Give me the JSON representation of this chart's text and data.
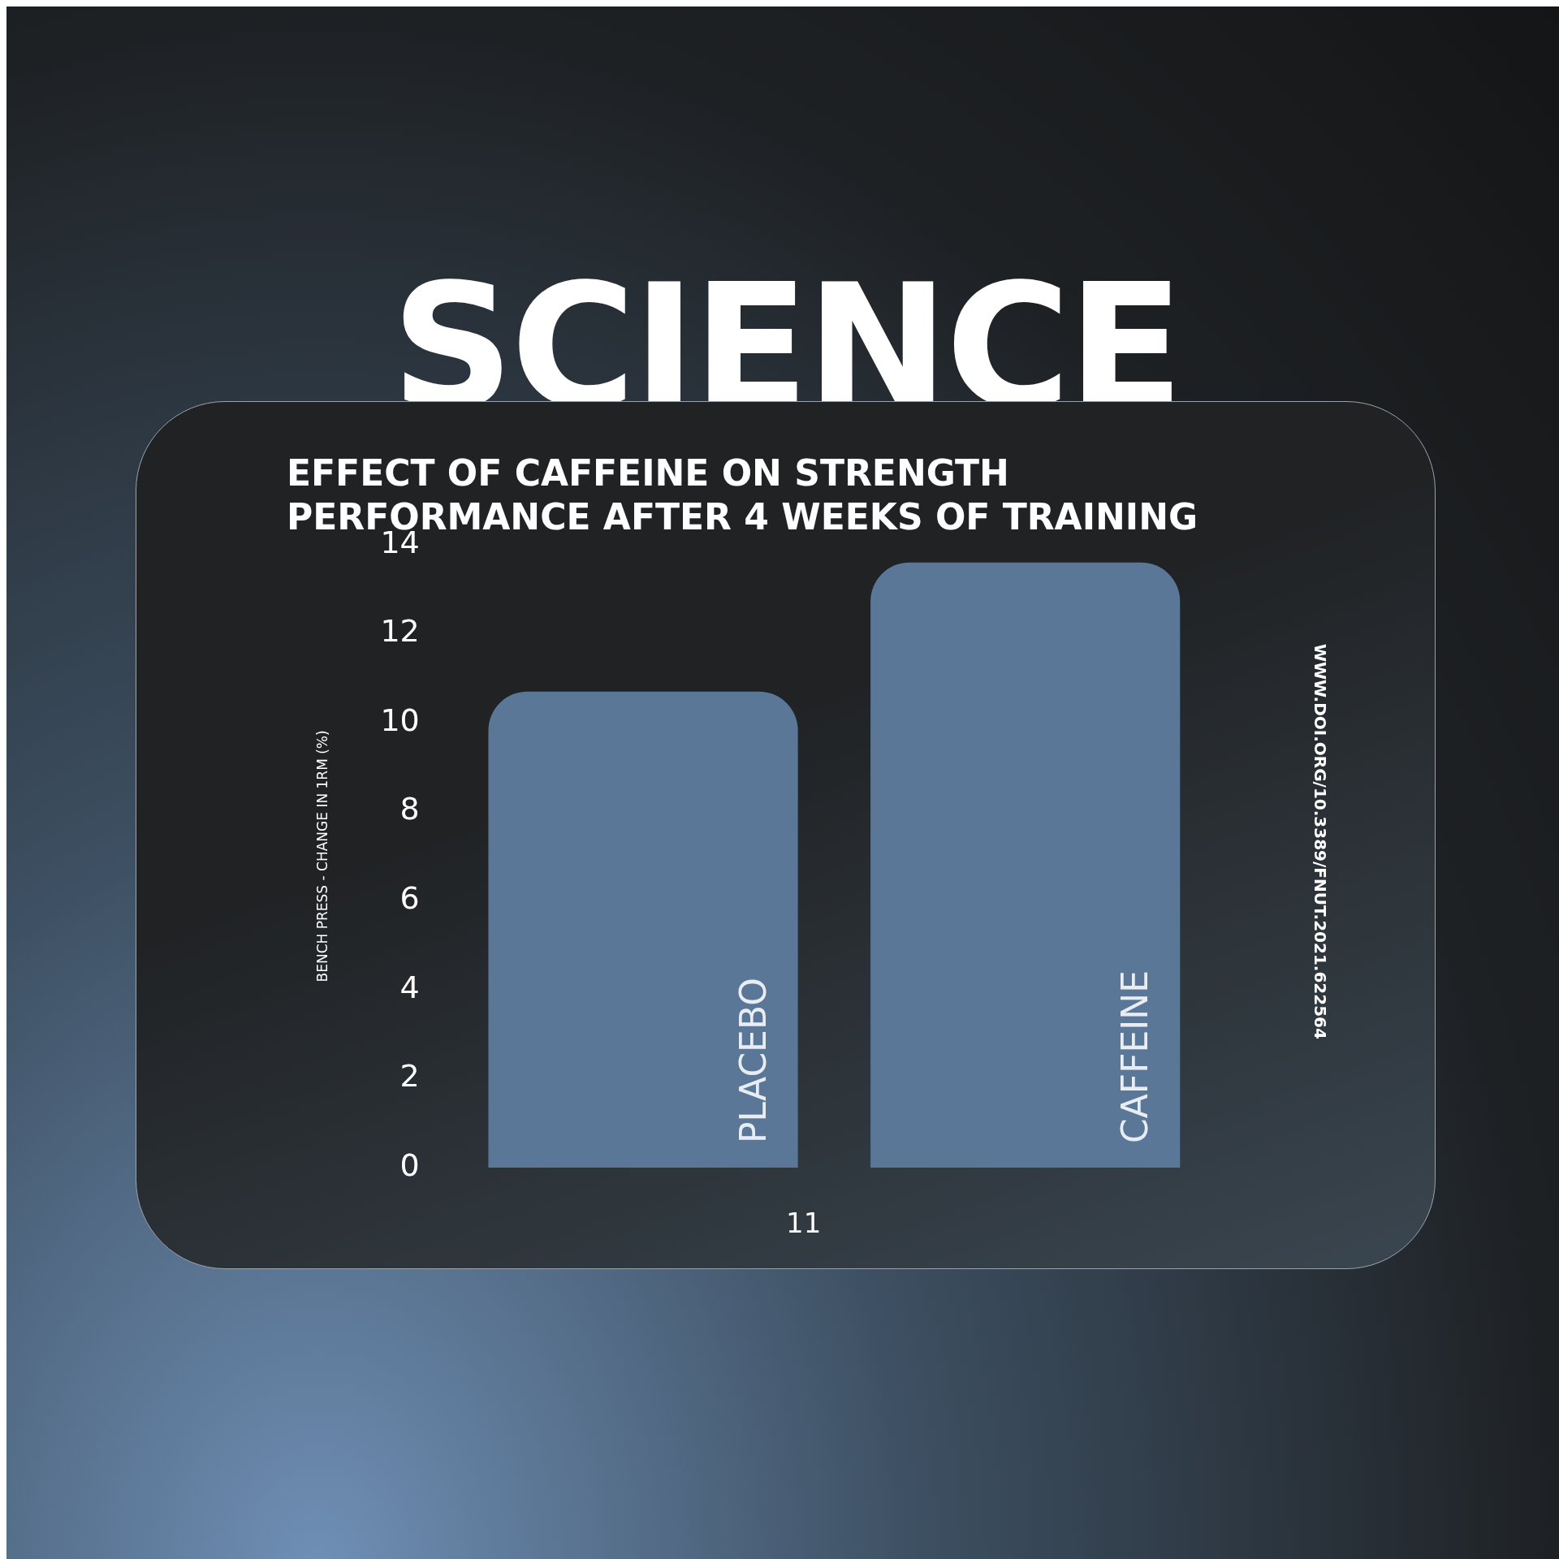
{
  "chart_data": {
    "type": "bar",
    "title": "SCIENCE",
    "subtitle": "EFFECT OF CAFFEINE ON STRENGTH PERFORMANCE AFTER 4 WEEKS OF TRAINING",
    "ylabel": "BENCH PRESS - CHANGE IN 1RM (%)",
    "categories": [
      "PLACEBO",
      "CAFFEINE"
    ],
    "values": [
      10.7,
      13.6
    ],
    "color": "#5a7797",
    "ylim": [
      0,
      14
    ],
    "yticks": [
      0,
      2,
      4,
      6,
      8,
      10,
      12,
      14
    ],
    "grid": false,
    "legend": false,
    "annotations": [
      "11",
      "WWW.DOI.ORG/10.3389/FNUT.2021.622564"
    ]
  }
}
